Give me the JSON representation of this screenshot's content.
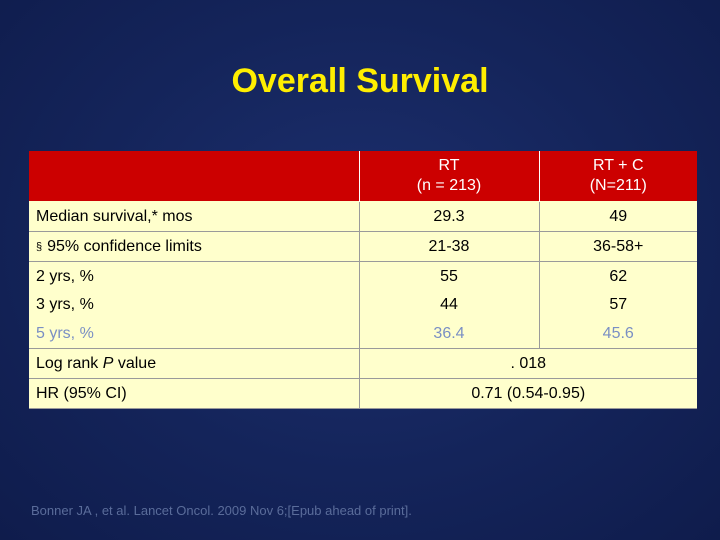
{
  "slide": {
    "title": "Overall Survival",
    "citation": "Bonner JA , et al. Lancet Oncol. 2009 Nov 6;[Epub ahead of print]."
  },
  "table": {
    "columns": [
      {
        "line1": "RT",
        "line2": "(n = 213)"
      },
      {
        "line1": "RT + C",
        "line2": "(N=211)"
      }
    ],
    "rows": [
      {
        "label": "Median survival,* mos",
        "rt": "29.3",
        "rtc": "49"
      },
      {
        "bullet": "§",
        "label": "95% confidence limits",
        "rt": "21-38",
        "rtc": "36-58+"
      },
      {
        "label": "2 yrs, %",
        "rt": "55",
        "rtc": "62"
      },
      {
        "label": "3 yrs, %",
        "rt": "44",
        "rtc": "57"
      },
      {
        "label": "5 yrs, %",
        "rt": "36.4",
        "rtc": "45.6"
      },
      {
        "label_pre": "Log rank ",
        "label_italic": "P",
        "label_post": " value",
        "combined": ". 018"
      },
      {
        "label": "HR (95% CI)",
        "combined": "0.71 (0.54-0.95)"
      }
    ]
  },
  "colors": {
    "background": "#14245a",
    "title": "#ffee00",
    "header_fill": "#cc0000",
    "cell_fill": "#ffffcc",
    "faded_row_text": "#7a8fc4"
  }
}
